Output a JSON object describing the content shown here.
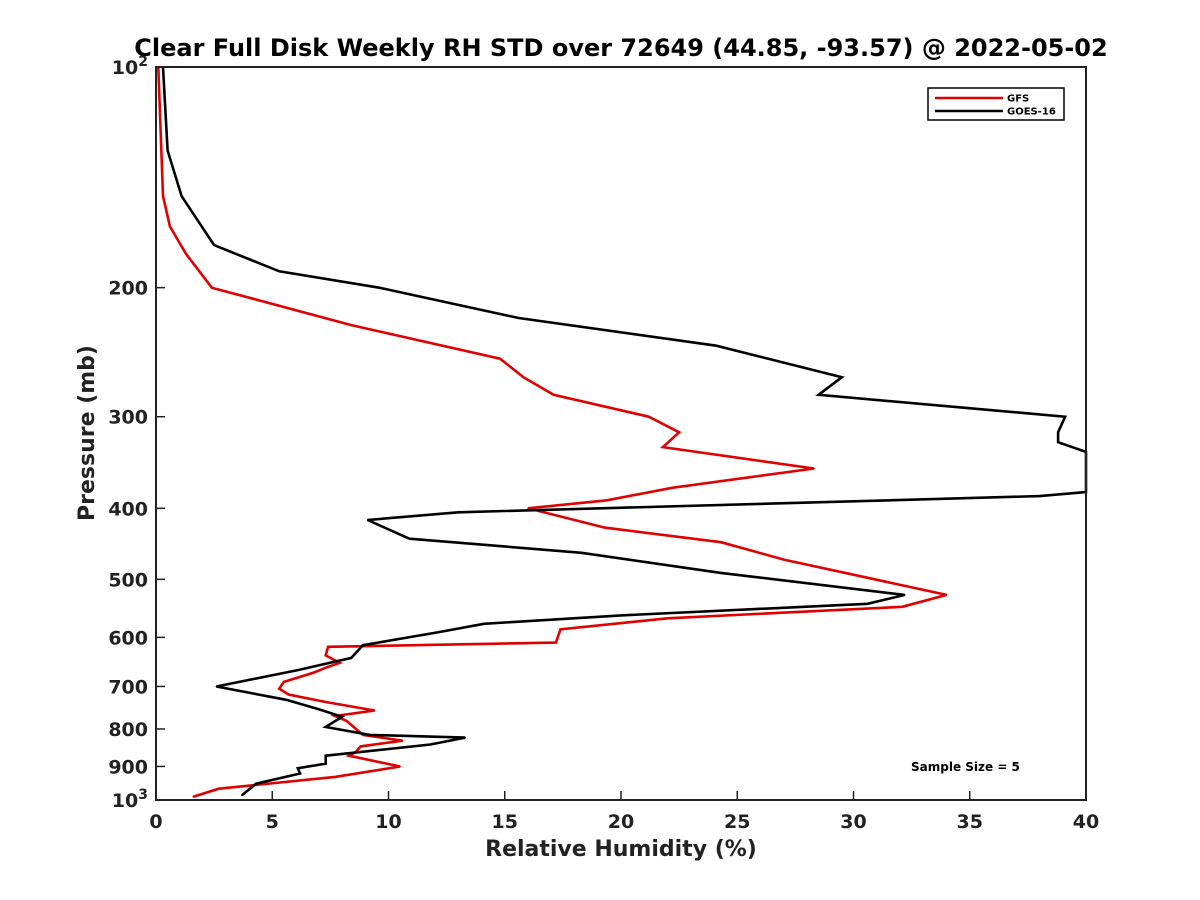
{
  "chart_data": {
    "type": "line",
    "title": "Clear Full Disk Weekly RH STD over 72649 (44.85, -93.57) @ 2022-05-02",
    "xlabel": "Relative Humidity (%)",
    "ylabel": "Pressure (mb)",
    "xlim": [
      0,
      40
    ],
    "ylim": [
      100,
      1000
    ],
    "y_scale": "log",
    "y_reversed": true,
    "x_ticks": [
      "0",
      "5",
      "10",
      "15",
      "20",
      "25",
      "30",
      "35",
      "40"
    ],
    "y_ticks": [
      {
        "value": 100,
        "label": "10",
        "sup": "2"
      },
      {
        "value": 200,
        "label": "200",
        "sup": ""
      },
      {
        "value": 300,
        "label": "300",
        "sup": ""
      },
      {
        "value": 400,
        "label": "400",
        "sup": ""
      },
      {
        "value": 500,
        "label": "500",
        "sup": ""
      },
      {
        "value": 600,
        "label": "600",
        "sup": ""
      },
      {
        "value": 700,
        "label": "700",
        "sup": ""
      },
      {
        "value": 800,
        "label": "800",
        "sup": ""
      },
      {
        "value": 900,
        "label": "900",
        "sup": ""
      },
      {
        "value": 1000,
        "label": "10",
        "sup": "3"
      }
    ],
    "grid": false,
    "legend_position": "top-right",
    "annotation": "Sample Size = 5",
    "series": [
      {
        "name": "GFS",
        "color": "#e00000",
        "points": [
          [
            0.1,
            100
          ],
          [
            0.3,
            150
          ],
          [
            0.6,
            165
          ],
          [
            1.3,
            180
          ],
          [
            2.4,
            200
          ],
          [
            8.4,
            225
          ],
          [
            14.8,
            250
          ],
          [
            15.8,
            265
          ],
          [
            17.1,
            280
          ],
          [
            21.2,
            300
          ],
          [
            22.5,
            315
          ],
          [
            21.8,
            330
          ],
          [
            28.3,
            353
          ],
          [
            22.2,
            375
          ],
          [
            19.4,
            390
          ],
          [
            16.0,
            400
          ],
          [
            19.3,
            425
          ],
          [
            24.3,
            445
          ],
          [
            27.0,
            470
          ],
          [
            34.0,
            525
          ],
          [
            32.1,
            545
          ],
          [
            22.0,
            565
          ],
          [
            17.4,
            585
          ],
          [
            17.2,
            610
          ],
          [
            7.4,
            618
          ],
          [
            7.3,
            635
          ],
          [
            7.9,
            650
          ],
          [
            7.3,
            660
          ],
          [
            6.8,
            670
          ],
          [
            5.5,
            690
          ],
          [
            5.3,
            705
          ],
          [
            5.7,
            718
          ],
          [
            7.3,
            735
          ],
          [
            9.4,
            755
          ],
          [
            7.7,
            768
          ],
          [
            8.2,
            780
          ],
          [
            8.9,
            815
          ],
          [
            10.6,
            830
          ],
          [
            8.8,
            845
          ],
          [
            8.6,
            860
          ],
          [
            8.3,
            870
          ],
          [
            10.5,
            900
          ],
          [
            7.7,
            930
          ],
          [
            2.7,
            965
          ],
          [
            1.6,
            990
          ]
        ]
      },
      {
        "name": "GOES-16",
        "color": "#000000",
        "points": [
          [
            0.3,
            100
          ],
          [
            0.5,
            130
          ],
          [
            1.1,
            150
          ],
          [
            2.5,
            175
          ],
          [
            5.3,
            190
          ],
          [
            9.6,
            200
          ],
          [
            15.6,
            220
          ],
          [
            24.1,
            240
          ],
          [
            29.5,
            265
          ],
          [
            28.5,
            280
          ],
          [
            39.1,
            300
          ],
          [
            38.8,
            315
          ],
          [
            38.8,
            325
          ],
          [
            40.0,
            335
          ],
          [
            40.0,
            380
          ],
          [
            38.0,
            385
          ],
          [
            13.0,
            405
          ],
          [
            9.1,
            415
          ],
          [
            10.9,
            440
          ],
          [
            18.3,
            460
          ],
          [
            24.3,
            490
          ],
          [
            32.2,
            525
          ],
          [
            30.6,
            540
          ],
          [
            20.0,
            560
          ],
          [
            14.1,
            575
          ],
          [
            12.2,
            590
          ],
          [
            8.9,
            615
          ],
          [
            8.4,
            640
          ],
          [
            6.1,
            665
          ],
          [
            2.6,
            700
          ],
          [
            5.6,
            730
          ],
          [
            7.0,
            752
          ],
          [
            8.0,
            770
          ],
          [
            7.3,
            795
          ],
          [
            9.2,
            815
          ],
          [
            13.3,
            822
          ],
          [
            11.8,
            840
          ],
          [
            7.3,
            870
          ],
          [
            7.3,
            892
          ],
          [
            6.1,
            905
          ],
          [
            6.2,
            920
          ],
          [
            4.3,
            950
          ],
          [
            3.7,
            985
          ]
        ]
      }
    ]
  }
}
